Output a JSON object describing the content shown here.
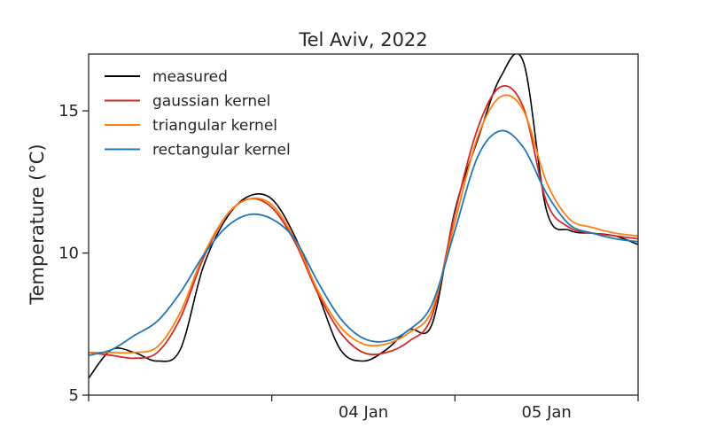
{
  "chart_data": {
    "type": "line",
    "title": "Tel Aviv, 2022",
    "xlabel": "",
    "ylabel": "Temperature (°C)",
    "xlim": [
      "2022-01-03 00:00",
      "2022-01-06 00:00"
    ],
    "ylim": [
      5,
      17
    ],
    "yticks": [
      5,
      10,
      15
    ],
    "xticks_major": [
      {
        "x": "2022-01-04 12:00",
        "label": "04 Jan"
      },
      {
        "x": "2022-01-05 12:00",
        "label": "05 Jan"
      }
    ],
    "xticks_minor": [
      "2022-01-03 00:00",
      "2022-01-04 00:00",
      "2022-01-05 00:00",
      "2022-01-06 00:00"
    ],
    "grid": false,
    "legend_position": "top-left",
    "x": [
      "2022-01-03 00:00",
      "2022-01-03 03:00",
      "2022-01-03 06:00",
      "2022-01-03 09:00",
      "2022-01-03 12:00",
      "2022-01-03 15:00",
      "2022-01-03 18:00",
      "2022-01-03 21:00",
      "2022-01-04 00:00",
      "2022-01-04 03:00",
      "2022-01-04 06:00",
      "2022-01-04 09:00",
      "2022-01-04 12:00",
      "2022-01-04 15:00",
      "2022-01-04 18:00",
      "2022-01-04 21:00",
      "2022-01-05 00:00",
      "2022-01-05 03:00",
      "2022-01-05 06:00",
      "2022-01-05 09:00",
      "2022-01-05 12:00",
      "2022-01-05 15:00",
      "2022-01-05 18:00",
      "2022-01-05 21:00",
      "2022-01-06 00:00"
    ],
    "series": [
      {
        "name": "measured",
        "color": "#000000",
        "values": [
          5.6,
          6.6,
          6.5,
          6.2,
          6.6,
          9.5,
          11.2,
          12.0,
          11.9,
          10.6,
          8.6,
          6.6,
          6.2,
          6.6,
          7.3,
          7.5,
          11.5,
          14.0,
          16.2,
          16.7,
          11.5,
          10.8,
          10.7,
          10.6,
          10.3
        ]
      },
      {
        "name": "gaussian kernel",
        "color": "#d62728",
        "values": [
          6.5,
          6.4,
          6.3,
          6.5,
          7.7,
          9.8,
          11.3,
          11.9,
          11.6,
          10.4,
          8.6,
          7.2,
          6.5,
          6.5,
          6.9,
          7.8,
          11.4,
          14.4,
          15.85,
          15.1,
          11.8,
          10.9,
          10.7,
          10.6,
          10.5
        ]
      },
      {
        "name": "triangular kernel",
        "color": "#ff7f0e",
        "values": [
          6.5,
          6.5,
          6.5,
          6.7,
          7.9,
          9.9,
          11.3,
          11.9,
          11.7,
          10.5,
          8.7,
          7.4,
          6.8,
          6.8,
          7.2,
          8.0,
          11.1,
          14.1,
          15.5,
          15.0,
          12.5,
          11.2,
          10.9,
          10.7,
          10.6
        ]
      },
      {
        "name": "rectangular kernel",
        "color": "#1f77b4",
        "values": [
          6.4,
          6.6,
          7.1,
          7.6,
          8.6,
          9.9,
          10.9,
          11.35,
          11.2,
          10.5,
          9.0,
          7.7,
          7.0,
          6.9,
          7.3,
          8.2,
          10.8,
          13.4,
          14.3,
          13.7,
          12.1,
          11.0,
          10.7,
          10.5,
          10.4
        ]
      }
    ]
  }
}
